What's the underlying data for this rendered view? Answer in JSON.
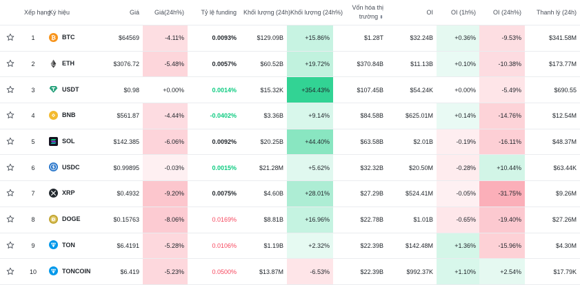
{
  "headers": {
    "rank": "Xếp hạng",
    "symbol": "Ký hiệu",
    "price": "Giá",
    "change": "Giá(24h%)",
    "funding": "Tỷ lệ funding",
    "volume": "Khối lượng (24h)",
    "volume_change": "Khối lượng (24h%)",
    "mcap_line1": "Vốn hóa thị",
    "mcap_line2": "trường",
    "oi": "OI",
    "oi_1h": "OI (1h%)",
    "oi_24h": "OI (24h%)",
    "liq": "Thanh lý (24h)"
  },
  "colors": {
    "btc": "#f7931a",
    "eth": "#3c3c3d",
    "usdt": "#26a17b",
    "bnb": "#f3ba2f",
    "sol": "#14111f",
    "usdc": "#2775ca",
    "xrp": "#23292f",
    "doge": "#c2a633",
    "ton": "#0098ea",
    "up": "#0ecb81",
    "down": "#f6465d",
    "neutral": "#1e2329"
  },
  "rows": [
    {
      "rank": "1",
      "symbol": "BTC",
      "icon": "btc-icon",
      "price": "$64569",
      "change": "-4.11%",
      "funding": "0.0093%",
      "volume": "$129.09B",
      "vol_change": "+15.86%",
      "mcap": "$1.28T",
      "oi": "$32.24B",
      "oi_1h": "+0.36%",
      "oi_24h": "-9.53%",
      "liq": "$341.58M"
    },
    {
      "rank": "2",
      "symbol": "ETH",
      "icon": "eth-icon",
      "price": "$3076.72",
      "change": "-5.48%",
      "funding": "0.0057%",
      "volume": "$60.52B",
      "vol_change": "+19.72%",
      "mcap": "$370.84B",
      "oi": "$11.13B",
      "oi_1h": "+0.10%",
      "oi_24h": "-10.38%",
      "liq": "$173.77M"
    },
    {
      "rank": "3",
      "symbol": "USDT",
      "icon": "usdt-icon",
      "price": "$0.98",
      "change": "+0.00%",
      "funding": "0.0014%",
      "volume": "$15.32K",
      "vol_change": "+354.43%",
      "mcap": "$107.45B",
      "oi": "$54.24K",
      "oi_1h": "+0.00%",
      "oi_24h": "-5.49%",
      "liq": "$690.55"
    },
    {
      "rank": "4",
      "symbol": "BNB",
      "icon": "bnb-icon",
      "price": "$561.87",
      "change": "-4.44%",
      "funding": "-0.0402%",
      "volume": "$3.36B",
      "vol_change": "+9.14%",
      "mcap": "$84.58B",
      "oi": "$625.01M",
      "oi_1h": "+0.14%",
      "oi_24h": "-14.76%",
      "liq": "$12.54M"
    },
    {
      "rank": "5",
      "symbol": "SOL",
      "icon": "sol-icon",
      "price": "$142.385",
      "change": "-6.06%",
      "funding": "0.0092%",
      "volume": "$20.25B",
      "vol_change": "+44.40%",
      "mcap": "$63.58B",
      "oi": "$2.01B",
      "oi_1h": "-0.19%",
      "oi_24h": "-16.11%",
      "liq": "$48.37M"
    },
    {
      "rank": "6",
      "symbol": "USDC",
      "icon": "usdc-icon",
      "price": "$0.99895",
      "change": "-0.03%",
      "funding": "0.0015%",
      "volume": "$21.28M",
      "vol_change": "+5.62%",
      "mcap": "$32.32B",
      "oi": "$20.50M",
      "oi_1h": "-0.28%",
      "oi_24h": "+10.44%",
      "liq": "$63.44K"
    },
    {
      "rank": "7",
      "symbol": "XRP",
      "icon": "xrp-icon",
      "price": "$0.4932",
      "change": "-9.20%",
      "funding": "0.0075%",
      "volume": "$4.60B",
      "vol_change": "+28.01%",
      "mcap": "$27.29B",
      "oi": "$524.41M",
      "oi_1h": "-0.05%",
      "oi_24h": "-31.75%",
      "liq": "$9.26M"
    },
    {
      "rank": "8",
      "symbol": "DOGE",
      "icon": "doge-icon",
      "price": "$0.15763",
      "change": "-8.06%",
      "funding": "0.0169%",
      "volume": "$8.81B",
      "vol_change": "+16.96%",
      "mcap": "$22.78B",
      "oi": "$1.01B",
      "oi_1h": "-0.65%",
      "oi_24h": "-19.40%",
      "liq": "$27.26M"
    },
    {
      "rank": "9",
      "symbol": "TON",
      "icon": "ton-icon",
      "price": "$6.4191",
      "change": "-5.28%",
      "funding": "0.0106%",
      "volume": "$1.19B",
      "vol_change": "+2.32%",
      "mcap": "$22.39B",
      "oi": "$142.48M",
      "oi_1h": "+1.36%",
      "oi_24h": "-15.96%",
      "liq": "$4.30M"
    },
    {
      "rank": "10",
      "symbol": "TONCOIN",
      "icon": "toncoin-icon",
      "price": "$6.419",
      "change": "-5.23%",
      "funding": "0.0500%",
      "volume": "$13.87M",
      "vol_change": "-6.53%",
      "mcap": "$22.39B",
      "oi": "$992.37K",
      "oi_1h": "+1.10%",
      "oi_24h": "+2.54%",
      "liq": "$17.79K"
    }
  ]
}
